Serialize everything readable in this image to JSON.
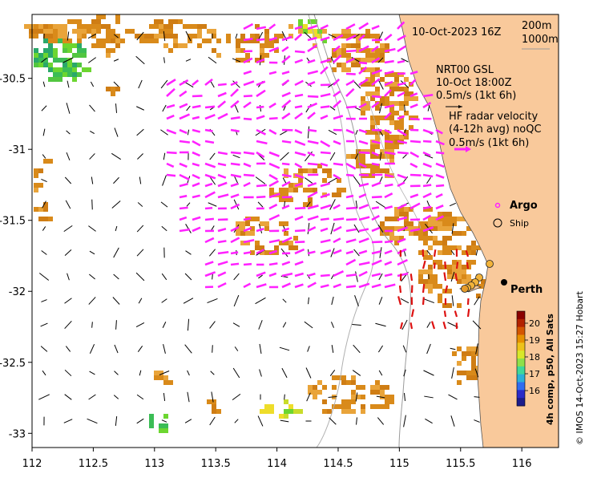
{
  "map": {
    "timestamp": "10-Oct-2023 16Z",
    "depth_labels": [
      "200m",
      "1000m"
    ],
    "model_label": [
      "NRT00 GSL",
      "10-Oct 18:00Z",
      "0.5m/s (1kt 6h)"
    ],
    "radar_label": [
      "HF radar velocity",
      "(4-12h avg) noQC",
      "0.5m/s (1kt 6h)"
    ],
    "legend": {
      "argo": "Argo",
      "ship": "Ship"
    },
    "city": "Perth",
    "credit": "© IMOS 14-Oct-2023 15:27 Hobart",
    "colorbar": {
      "title": "4h comp, p50, All Sats",
      "ticks": [
        "20",
        "19",
        "18",
        "17",
        "16"
      ]
    },
    "x_ticks": [
      "112",
      "112.5",
      "113",
      "113.5",
      "114",
      "114.5",
      "115",
      "115.5",
      "116"
    ],
    "y_ticks": [
      "-30.5",
      "-31",
      "-31.5",
      "-32",
      "-32.5",
      "-33"
    ],
    "x_range": [
      112,
      116.3
    ],
    "y_range": [
      -30.05,
      -33.1
    ],
    "colors": {
      "land": "#f9c99b",
      "sst_warm": "#d98a1a",
      "sst_orange": "#e9a43a",
      "sst_yellow": "#eedd2a",
      "sst_green": "#6cd630",
      "radar_arrow": "#ff22ff",
      "model_arrow": "#000000",
      "nearshore_arrow": "#dd1111"
    }
  }
}
